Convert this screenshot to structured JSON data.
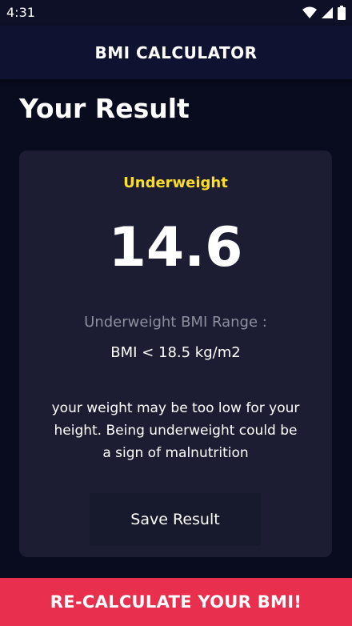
{
  "status_bar": {
    "time": "4:31",
    "icons": [
      "wifi-icon",
      "signal-icon",
      "battery-icon"
    ]
  },
  "app_bar": {
    "title": "BMI CALCULATOR"
  },
  "page": {
    "title": "Your Result"
  },
  "result": {
    "status": "Underweight",
    "bmi": "14.6",
    "range_label": "Underweight BMI Range :",
    "range_value": "BMI < 18.5 kg/m2",
    "interpretation": "your weight may be too low for your height. Being underweight could be a sign of malnutrition",
    "save_label": "Save Result"
  },
  "bottom_button": {
    "label": "RE-CALCULATE YOUR BMI!"
  },
  "colors": {
    "background": "#090c1f",
    "app_bar": "#0f1230",
    "card": "#1c1d33",
    "status_accent": "#f9dc2c",
    "bottom_button": "#e8304e"
  }
}
